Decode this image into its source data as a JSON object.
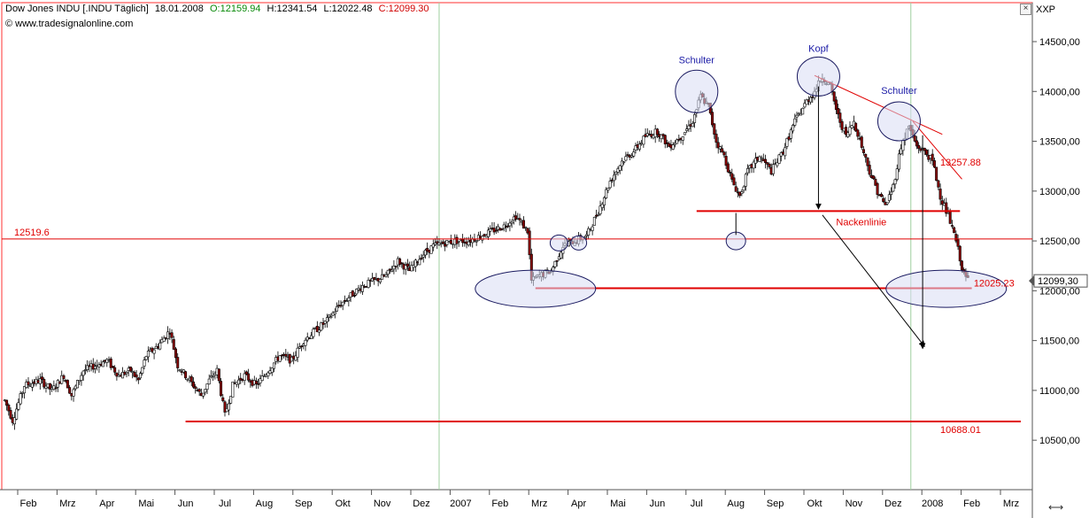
{
  "header": {
    "title": "Dow Jones INDU [.INDU  Täglich]",
    "date": "18.01.2008",
    "open": "O:12159.94",
    "high": "H:12341.54",
    "low": "L:12022.48",
    "close": "C:12099.30",
    "source": "© www.tradesignalonline.com"
  },
  "axis_title": "XXP",
  "colors": {
    "up": "#ffffff",
    "down": "#8b0000",
    "wick": "#000000",
    "red_line": "#e00000",
    "annotation_blue": "#1a1aa6",
    "ellipse_fill": "#d8dcf4",
    "ellipse_stroke": "#1a1a60",
    "open_green": "#0a8a0a",
    "close_red": "#d00000"
  },
  "chart_data": {
    "type": "candlestick",
    "title": "Dow Jones INDU [.INDU  Täglich]",
    "x_tick_labels": [
      "Feb",
      "Mrz",
      "Apr",
      "Mai",
      "Jun",
      "Jul",
      "Aug",
      "Sep",
      "Okt",
      "Nov",
      "Dez",
      "2007",
      "Feb",
      "Mrz",
      "Apr",
      "Mai",
      "Jun",
      "Jul",
      "Aug",
      "Sep",
      "Okt",
      "Nov",
      "Dez",
      "2008",
      "Feb",
      "Mrz"
    ],
    "x_tick_months": [
      0,
      1,
      2,
      3,
      4,
      5,
      6,
      7,
      8,
      9,
      10,
      11,
      12,
      13,
      14,
      15,
      16,
      17,
      18,
      19,
      20,
      21,
      22,
      23,
      24,
      25
    ],
    "year_dividers": [
      11,
      23
    ],
    "x_range_months": [
      -0.6,
      25.4
    ],
    "y_ticks": [
      10500,
      11000,
      11500,
      12000,
      12500,
      13000,
      13500,
      14000,
      14500
    ],
    "y_tick_labels": [
      "10500,00",
      "11000,00",
      "11500,00",
      "12000,00",
      "12500,00",
      "13000,00",
      "13500,00",
      "14000,00",
      "14500,00"
    ],
    "ylim": [
      10040,
      14630
    ],
    "last_price": 12099.3,
    "last_price_label": "12099,30",
    "horizontal_levels": [
      {
        "value": 12519.6,
        "label": "12519.6",
        "style": "thin"
      },
      {
        "value": 12025.23,
        "label": "12025.23",
        "style": "bold"
      },
      {
        "value": 10688.01,
        "label": "10688.01",
        "style": "bold"
      },
      {
        "value": 12800,
        "label": "Nackenlinie",
        "style": "bold"
      }
    ],
    "trendline_label": "13257.88",
    "annotations": [
      "Schulter",
      "Kopf",
      "Schulter",
      "Nackenlinie"
    ],
    "path": [
      [
        -0.6,
        10900
      ],
      [
        -0.4,
        10700
      ],
      [
        -0.1,
        11050
      ],
      [
        0.3,
        11100
      ],
      [
        0.6,
        11000
      ],
      [
        0.9,
        11150
      ],
      [
        1.1,
        10950
      ],
      [
        1.4,
        11200
      ],
      [
        1.7,
        11250
      ],
      [
        2.0,
        11300
      ],
      [
        2.3,
        11150
      ],
      [
        2.6,
        11200
      ],
      [
        2.8,
        11100
      ],
      [
        3.0,
        11350
      ],
      [
        3.3,
        11450
      ],
      [
        3.6,
        11600
      ],
      [
        3.8,
        11250
      ],
      [
        4.0,
        11150
      ],
      [
        4.2,
        11050
      ],
      [
        4.4,
        10950
      ],
      [
        4.6,
        11100
      ],
      [
        4.8,
        11200
      ],
      [
        5.0,
        10750
      ],
      [
        5.2,
        11050
      ],
      [
        5.5,
        11150
      ],
      [
        5.8,
        11050
      ],
      [
        6.1,
        11200
      ],
      [
        6.4,
        11350
      ],
      [
        6.7,
        11300
      ],
      [
        7.0,
        11500
      ],
      [
        7.3,
        11600
      ],
      [
        7.6,
        11700
      ],
      [
        7.9,
        11850
      ],
      [
        8.2,
        11950
      ],
      [
        8.5,
        12050
      ],
      [
        8.8,
        12100
      ],
      [
        9.1,
        12150
      ],
      [
        9.4,
        12300
      ],
      [
        9.7,
        12200
      ],
      [
        10.0,
        12350
      ],
      [
        10.3,
        12450
      ],
      [
        10.6,
        12480
      ],
      [
        10.9,
        12500
      ],
      [
        11.2,
        12500
      ],
      [
        11.5,
        12550
      ],
      [
        11.8,
        12600
      ],
      [
        12.1,
        12650
      ],
      [
        12.4,
        12750
      ],
      [
        12.7,
        12600
      ],
      [
        12.8,
        12100
      ],
      [
        13.0,
        12150
      ],
      [
        13.3,
        12200
      ],
      [
        13.6,
        12450
      ],
      [
        13.9,
        12500
      ],
      [
        14.2,
        12550
      ],
      [
        14.5,
        12800
      ],
      [
        14.8,
        13100
      ],
      [
        15.1,
        13300
      ],
      [
        15.4,
        13400
      ],
      [
        15.7,
        13550
      ],
      [
        16.0,
        13600
      ],
      [
        16.3,
        13450
      ],
      [
        16.6,
        13550
      ],
      [
        16.9,
        13700
      ],
      [
        17.1,
        13950
      ],
      [
        17.3,
        13850
      ],
      [
        17.5,
        13500
      ],
      [
        17.7,
        13350
      ],
      [
        17.9,
        13100
      ],
      [
        18.1,
        12950
      ],
      [
        18.3,
        13200
      ],
      [
        18.6,
        13350
      ],
      [
        18.9,
        13200
      ],
      [
        19.2,
        13400
      ],
      [
        19.5,
        13700
      ],
      [
        19.8,
        13900
      ],
      [
        20.0,
        14000
      ],
      [
        20.2,
        14150
      ],
      [
        20.4,
        14050
      ],
      [
        20.6,
        13750
      ],
      [
        20.8,
        13550
      ],
      [
        21.0,
        13700
      ],
      [
        21.2,
        13450
      ],
      [
        21.4,
        13200
      ],
      [
        21.6,
        13000
      ],
      [
        21.8,
        12850
      ],
      [
        22.0,
        13050
      ],
      [
        22.2,
        13450
      ],
      [
        22.4,
        13650
      ],
      [
        22.6,
        13450
      ],
      [
        22.8,
        13400
      ],
      [
        23.0,
        13300
      ],
      [
        23.2,
        12950
      ],
      [
        23.4,
        12750
      ],
      [
        23.6,
        12500
      ],
      [
        23.8,
        12150
      ],
      [
        23.95,
        12100
      ]
    ]
  }
}
